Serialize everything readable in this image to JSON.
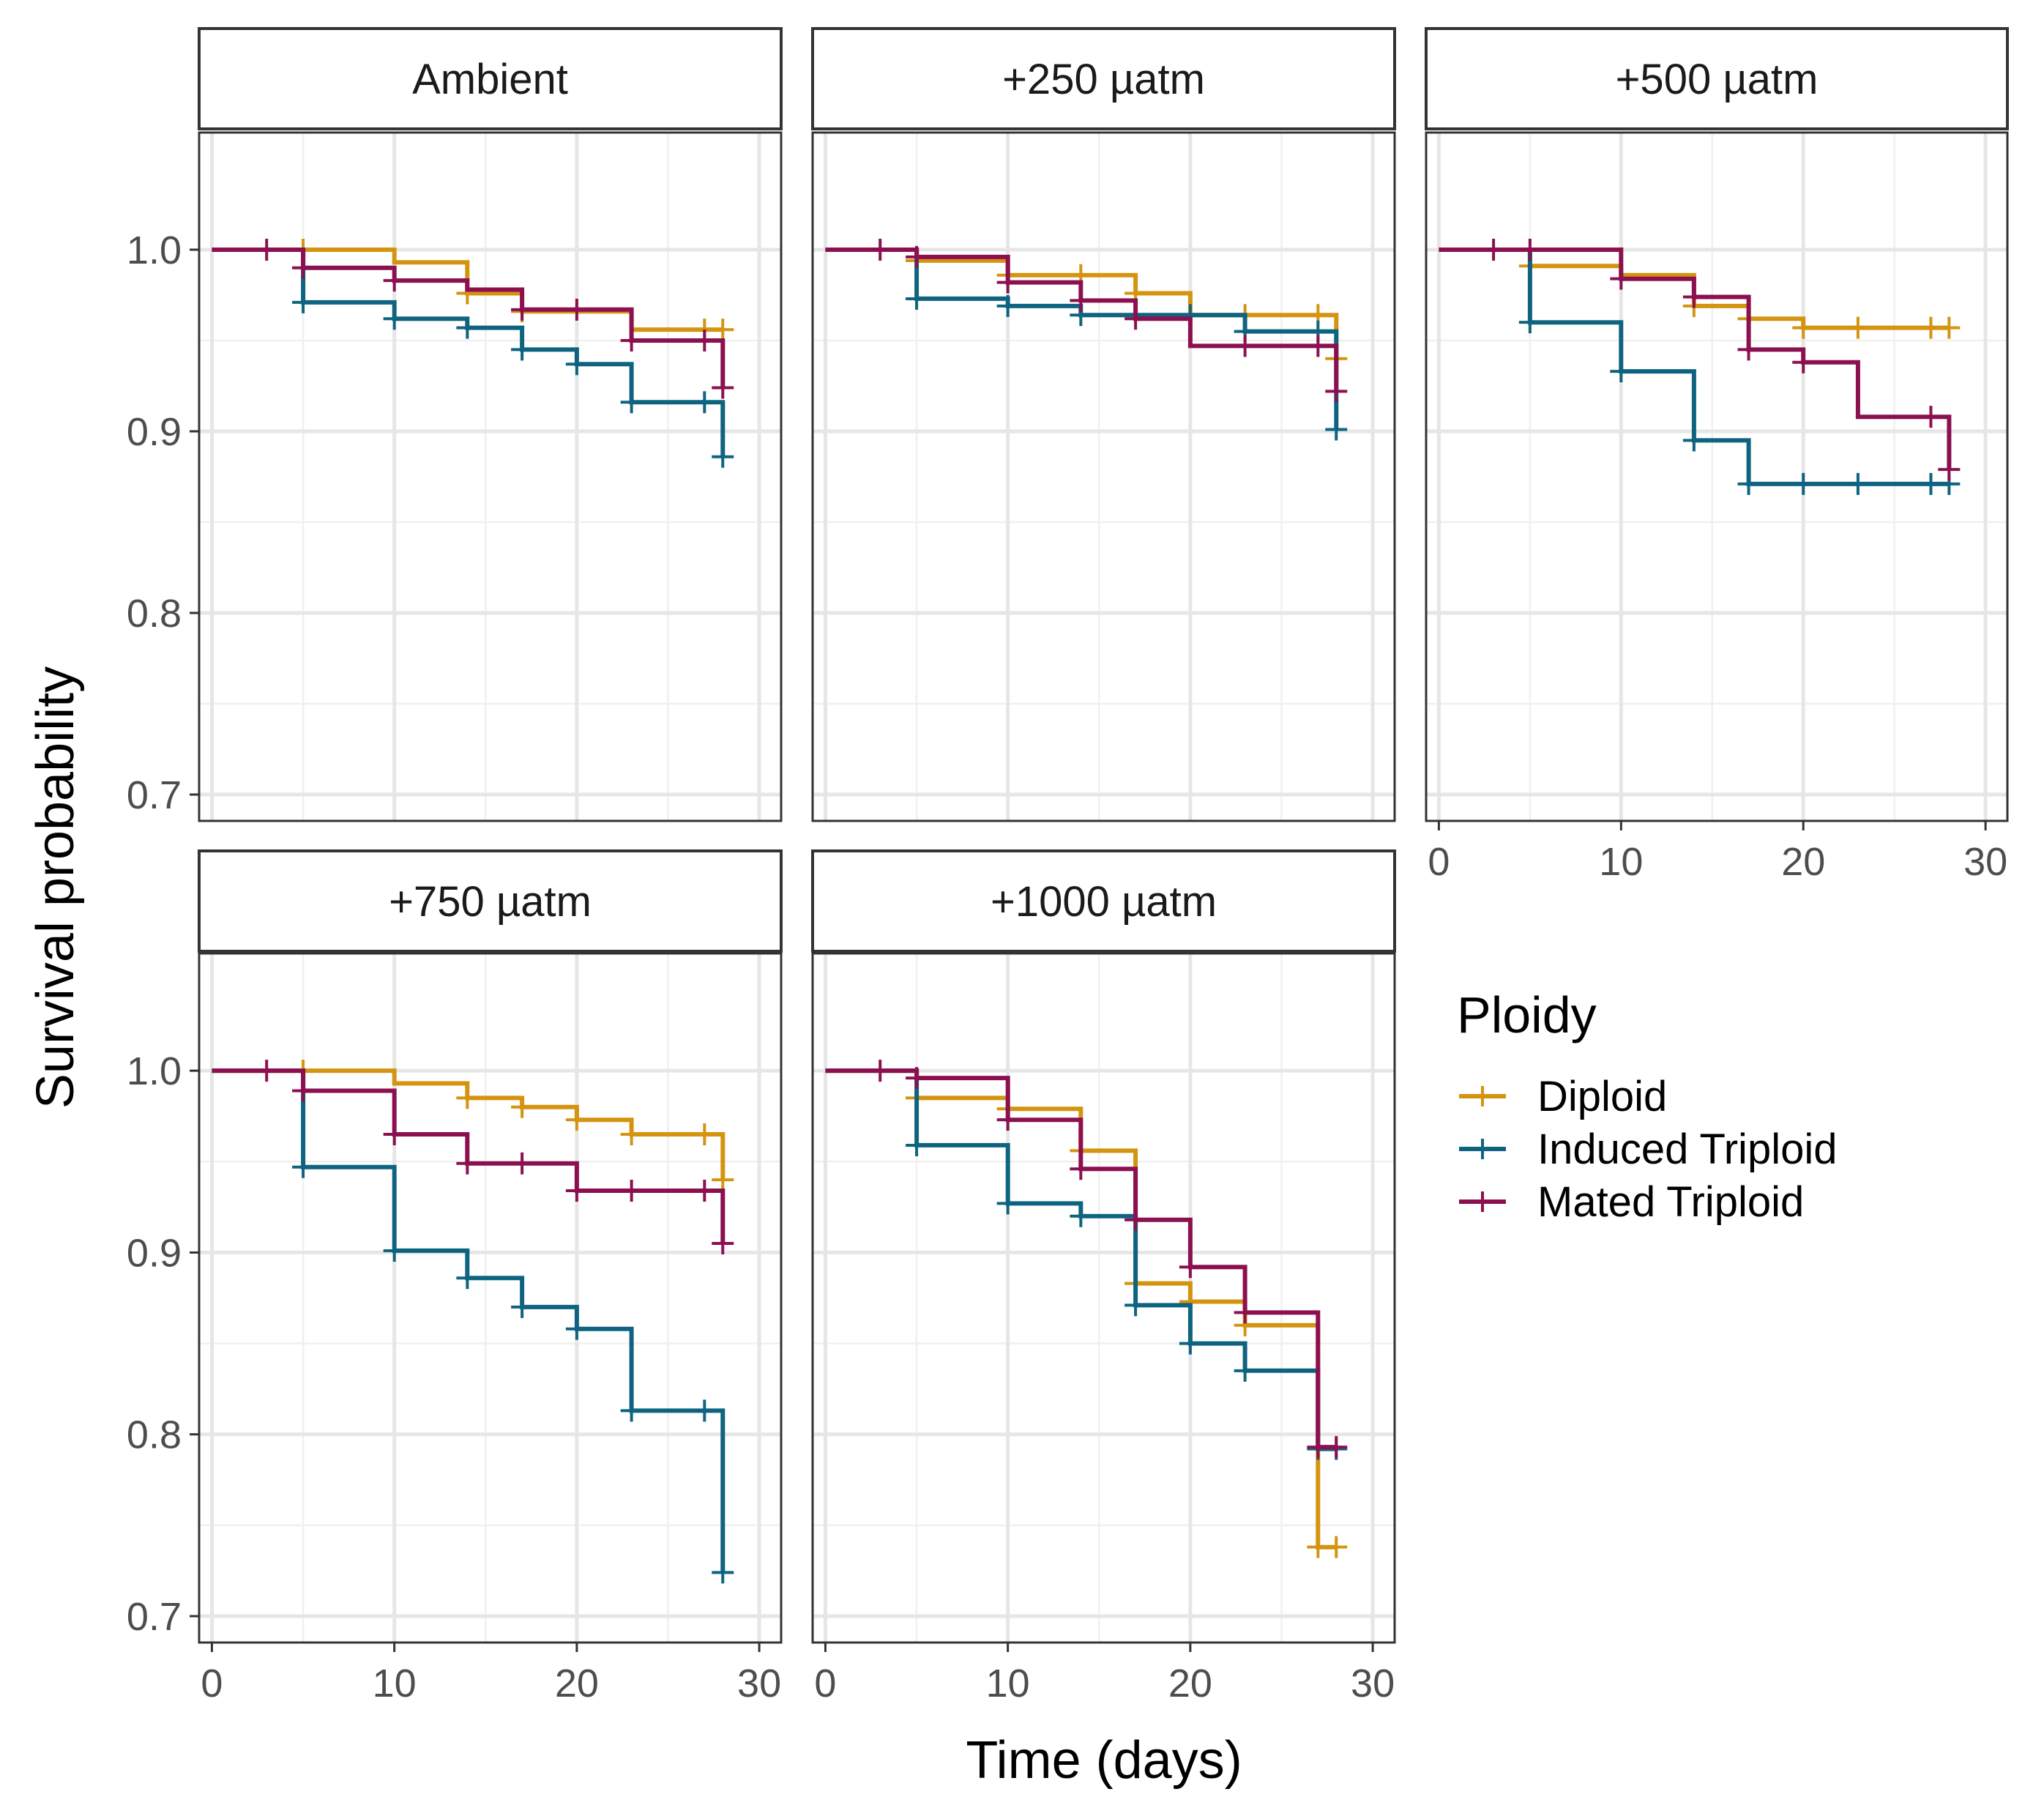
{
  "chart_data": {
    "type": "line",
    "subtype": "kaplan-meier step (faceted)",
    "xlabel": "Time (days)",
    "ylabel": "Survival probability",
    "xlim": [
      -0.7,
      31.2
    ],
    "ylim": [
      0.6855,
      1.0645
    ],
    "x_ticks": [
      0,
      10,
      20,
      30
    ],
    "x_tick_labels": [
      "0",
      "10",
      "20",
      "30"
    ],
    "y_ticks": [
      0.7,
      0.8,
      0.9,
      1.0
    ],
    "y_tick_labels": [
      "0.7",
      "0.8",
      "0.9",
      "1.0"
    ],
    "grid": true,
    "legend": {
      "title": "Ploidy",
      "position": "right",
      "entries": [
        {
          "label": "Diploid",
          "color": "#D4940F"
        },
        {
          "label": "Induced Triploid",
          "color": "#0E6480"
        },
        {
          "label": "Mated Triploid",
          "color": "#8C1050"
        }
      ]
    },
    "colors": {
      "Diploid": "#D4940F",
      "Induced Triploid": "#0E6480",
      "Mated Triploid": "#8C1050"
    },
    "panels": [
      {
        "label": "Ambient",
        "series": [
          {
            "name": "Diploid",
            "x": [
              0,
              5,
              10,
              14,
              17,
              23,
              28
            ],
            "y": [
              1.0,
              1.0,
              0.993,
              0.976,
              0.966,
              0.956,
              0.956
            ],
            "censor": [
              [
                5,
                1.0
              ],
              [
                14,
                0.976
              ],
              [
                17,
                0.966
              ],
              [
                27,
                0.956
              ],
              [
                28,
                0.956
              ]
            ]
          },
          {
            "name": "Induced Triploid",
            "x": [
              0,
              5,
              10,
              14,
              17,
              20,
              23,
              28,
              28
            ],
            "y": [
              1.0,
              0.971,
              0.962,
              0.957,
              0.945,
              0.937,
              0.916,
              0.916,
              0.886
            ],
            "censor": [
              [
                5,
                0.971
              ],
              [
                10,
                0.962
              ],
              [
                14,
                0.957
              ],
              [
                17,
                0.945
              ],
              [
                20,
                0.937
              ],
              [
                23,
                0.916
              ],
              [
                27,
                0.916
              ],
              [
                28,
                0.886
              ]
            ]
          },
          {
            "name": "Mated Triploid",
            "x": [
              0,
              5,
              10,
              14,
              17,
              23,
              28,
              28
            ],
            "y": [
              1.0,
              0.99,
              0.983,
              0.978,
              0.967,
              0.95,
              0.95,
              0.924
            ],
            "censor": [
              [
                3,
                1.0
              ],
              [
                5,
                0.99
              ],
              [
                10,
                0.983
              ],
              [
                17,
                0.967
              ],
              [
                20,
                0.967
              ],
              [
                23,
                0.95
              ],
              [
                27,
                0.95
              ],
              [
                28,
                0.924
              ]
            ]
          }
        ]
      },
      {
        "label": "+250 µatm",
        "series": [
          {
            "name": "Diploid",
            "x": [
              0,
              5,
              10,
              17,
              20,
              28,
              28
            ],
            "y": [
              1.0,
              0.994,
              0.986,
              0.976,
              0.964,
              0.964,
              0.94
            ],
            "censor": [
              [
                5,
                0.994
              ],
              [
                10,
                0.986
              ],
              [
                14,
                0.986
              ],
              [
                17,
                0.976
              ],
              [
                23,
                0.964
              ],
              [
                27,
                0.964
              ],
              [
                28,
                0.94
              ]
            ]
          },
          {
            "name": "Induced Triploid",
            "x": [
              0,
              5,
              10,
              14,
              23,
              28,
              28
            ],
            "y": [
              1.0,
              0.973,
              0.969,
              0.964,
              0.955,
              0.955,
              0.901
            ],
            "censor": [
              [
                5,
                0.973
              ],
              [
                10,
                0.969
              ],
              [
                14,
                0.964
              ],
              [
                20,
                0.964
              ],
              [
                23,
                0.955
              ],
              [
                27,
                0.955
              ],
              [
                28,
                0.901
              ]
            ]
          },
          {
            "name": "Mated Triploid",
            "x": [
              0,
              5,
              10,
              14,
              17,
              20,
              28,
              28
            ],
            "y": [
              1.0,
              0.996,
              0.982,
              0.972,
              0.962,
              0.947,
              0.947,
              0.922
            ],
            "censor": [
              [
                3,
                1.0
              ],
              [
                5,
                0.996
              ],
              [
                10,
                0.982
              ],
              [
                14,
                0.972
              ],
              [
                17,
                0.962
              ],
              [
                23,
                0.947
              ],
              [
                27,
                0.947
              ],
              [
                28,
                0.922
              ]
            ]
          }
        ]
      },
      {
        "label": "+500 µatm",
        "series": [
          {
            "name": "Diploid",
            "x": [
              0,
              5,
              10,
              14,
              17,
              20,
              28
            ],
            "y": [
              1.0,
              0.991,
              0.986,
              0.969,
              0.962,
              0.957,
              0.957
            ],
            "censor": [
              [
                5,
                0.991
              ],
              [
                14,
                0.969
              ],
              [
                17,
                0.962
              ],
              [
                20,
                0.957
              ],
              [
                23,
                0.957
              ],
              [
                27,
                0.957
              ],
              [
                28,
                0.957
              ]
            ]
          },
          {
            "name": "Induced Triploid",
            "x": [
              0,
              5,
              10,
              14,
              17,
              28
            ],
            "y": [
              1.0,
              0.96,
              0.933,
              0.895,
              0.871,
              0.871
            ],
            "censor": [
              [
                5,
                0.96
              ],
              [
                10,
                0.933
              ],
              [
                14,
                0.895
              ],
              [
                17,
                0.871
              ],
              [
                20,
                0.871
              ],
              [
                23,
                0.871
              ],
              [
                27,
                0.871
              ],
              [
                28,
                0.871
              ]
            ]
          },
          {
            "name": "Mated Triploid",
            "x": [
              0,
              5,
              10,
              14,
              17,
              20,
              23,
              28,
              28
            ],
            "y": [
              1.0,
              1.0,
              0.984,
              0.974,
              0.945,
              0.938,
              0.908,
              0.908,
              0.879
            ],
            "censor": [
              [
                3,
                1.0
              ],
              [
                5,
                1.0
              ],
              [
                10,
                0.984
              ],
              [
                14,
                0.974
              ],
              [
                17,
                0.945
              ],
              [
                20,
                0.938
              ],
              [
                27,
                0.908
              ],
              [
                28,
                0.879
              ]
            ]
          }
        ]
      },
      {
        "label": "+750 µatm",
        "series": [
          {
            "name": "Diploid",
            "x": [
              0,
              5,
              10,
              14,
              17,
              20,
              23,
              28,
              28
            ],
            "y": [
              1.0,
              1.0,
              0.993,
              0.985,
              0.98,
              0.973,
              0.965,
              0.965,
              0.94
            ],
            "censor": [
              [
                5,
                1.0
              ],
              [
                14,
                0.985
              ],
              [
                17,
                0.98
              ],
              [
                20,
                0.973
              ],
              [
                23,
                0.965
              ],
              [
                27,
                0.965
              ],
              [
                28,
                0.94
              ]
            ]
          },
          {
            "name": "Induced Triploid",
            "x": [
              0,
              5,
              10,
              14,
              17,
              20,
              23,
              28,
              28
            ],
            "y": [
              1.0,
              0.947,
              0.901,
              0.886,
              0.87,
              0.858,
              0.813,
              0.813,
              0.724
            ],
            "censor": [
              [
                5,
                0.947
              ],
              [
                10,
                0.901
              ],
              [
                14,
                0.886
              ],
              [
                17,
                0.87
              ],
              [
                20,
                0.858
              ],
              [
                23,
                0.813
              ],
              [
                27,
                0.813
              ],
              [
                28,
                0.724
              ]
            ]
          },
          {
            "name": "Mated Triploid",
            "x": [
              0,
              5,
              10,
              14,
              20,
              28,
              28
            ],
            "y": [
              1.0,
              0.989,
              0.965,
              0.949,
              0.934,
              0.934,
              0.905
            ],
            "censor": [
              [
                3,
                1.0
              ],
              [
                5,
                0.989
              ],
              [
                10,
                0.965
              ],
              [
                14,
                0.949
              ],
              [
                17,
                0.949
              ],
              [
                20,
                0.934
              ],
              [
                23,
                0.934
              ],
              [
                27,
                0.934
              ],
              [
                28,
                0.905
              ]
            ]
          }
        ]
      },
      {
        "label": "+1000  µatm",
        "series": [
          {
            "name": "Diploid",
            "x": [
              0,
              5,
              10,
              14,
              17,
              20,
              23,
              27,
              28
            ],
            "y": [
              1.0,
              0.985,
              0.979,
              0.956,
              0.883,
              0.873,
              0.86,
              0.738,
              0.738
            ],
            "censor": [
              [
                5,
                0.985
              ],
              [
                10,
                0.979
              ],
              [
                14,
                0.956
              ],
              [
                17,
                0.883
              ],
              [
                20,
                0.873
              ],
              [
                23,
                0.86
              ],
              [
                27,
                0.738
              ],
              [
                28,
                0.738
              ]
            ]
          },
          {
            "name": "Induced Triploid",
            "x": [
              0,
              5,
              10,
              14,
              17,
              20,
              23,
              27,
              28
            ],
            "y": [
              1.0,
              0.959,
              0.927,
              0.92,
              0.871,
              0.85,
              0.835,
              0.792,
              0.792
            ],
            "censor": [
              [
                5,
                0.959
              ],
              [
                10,
                0.927
              ],
              [
                14,
                0.92
              ],
              [
                17,
                0.871
              ],
              [
                20,
                0.85
              ],
              [
                23,
                0.835
              ],
              [
                27,
                0.792
              ],
              [
                28,
                0.792
              ]
            ]
          },
          {
            "name": "Mated Triploid",
            "x": [
              0,
              5,
              10,
              14,
              17,
              20,
              23,
              27,
              28
            ],
            "y": [
              1.0,
              0.996,
              0.973,
              0.946,
              0.918,
              0.892,
              0.867,
              0.793,
              0.793
            ],
            "censor": [
              [
                3,
                1.0
              ],
              [
                5,
                0.996
              ],
              [
                10,
                0.973
              ],
              [
                14,
                0.946
              ],
              [
                17,
                0.918
              ],
              [
                20,
                0.892
              ],
              [
                23,
                0.867
              ],
              [
                27,
                0.793
              ],
              [
                28,
                0.793
              ]
            ]
          }
        ]
      }
    ]
  }
}
